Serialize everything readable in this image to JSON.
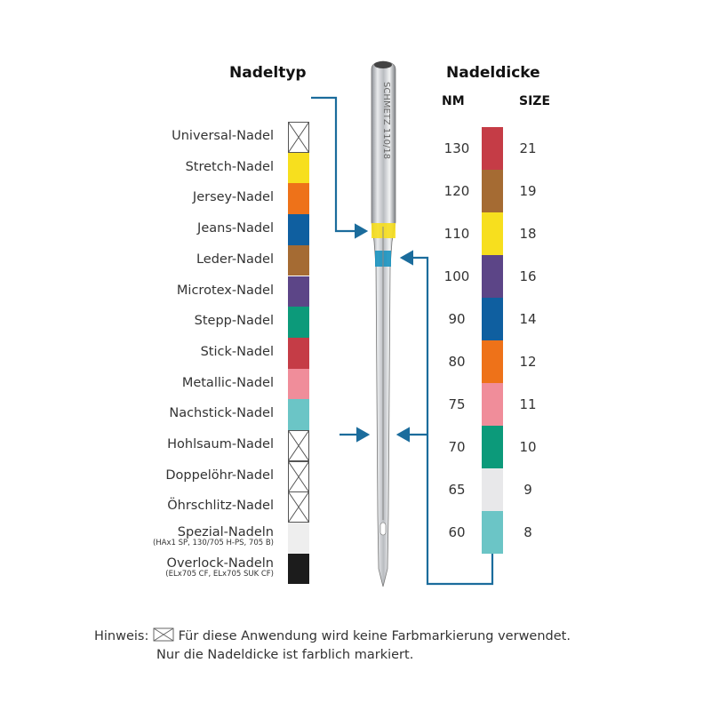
{
  "headers": {
    "needle_type": "Nadeltyp",
    "needle_size": "Nadeldicke",
    "nm": "NM",
    "size": "SIZE"
  },
  "needle_engraving": "SCHMETZ 110/18",
  "needle_types": [
    {
      "label": "Universal-Nadel",
      "color": null
    },
    {
      "label": "Stretch-Nadel",
      "color": "#f7df1e"
    },
    {
      "label": "Jersey-Nadel",
      "color": "#ee7219"
    },
    {
      "label": "Jeans-Nadel",
      "color": "#0f5fa0"
    },
    {
      "label": "Leder-Nadel",
      "color": "#a56b33"
    },
    {
      "label": "Microtex-Nadel",
      "color": "#5c4587"
    },
    {
      "label": "Stepp-Nadel",
      "color": "#0c9a7a"
    },
    {
      "label": "Stick-Nadel",
      "color": "#c53c46"
    },
    {
      "label": "Metallic-Nadel",
      "color": "#f08d9a"
    },
    {
      "label": "Nachstick-Nadel",
      "color": "#6bc5c6"
    },
    {
      "label": "Hohlsaum-Nadel",
      "color": null
    },
    {
      "label": "Doppelöhr-Nadel",
      "color": null
    },
    {
      "label": "Öhrschlitz-Nadel",
      "color": null
    },
    {
      "label": "Spezial-Nadeln",
      "note": "(HAx1 SP, 130/705 H-PS, 705 B)",
      "color": "#eeeeee"
    },
    {
      "label": "Overlock-Nadeln",
      "note": "(ELx705 CF, ELx705 SUK CF)",
      "color": "#1c1c1c"
    }
  ],
  "needle_sizes": [
    {
      "nm": "130",
      "size": "21",
      "color": "#c53c46"
    },
    {
      "nm": "120",
      "size": "19",
      "color": "#a56b33"
    },
    {
      "nm": "110",
      "size": "18",
      "color": "#f7df1e"
    },
    {
      "nm": "100",
      "size": "16",
      "color": "#5c4587"
    },
    {
      "nm": "90",
      "size": "14",
      "color": "#0f5fa0"
    },
    {
      "nm": "80",
      "size": "12",
      "color": "#ee7219"
    },
    {
      "nm": "75",
      "size": "11",
      "color": "#f08d9a"
    },
    {
      "nm": "70",
      "size": "10",
      "color": "#0c9a7a"
    },
    {
      "nm": "65",
      "size": "9",
      "color": "#e8e8ea"
    },
    {
      "nm": "60",
      "size": "8",
      "color": "#6bc5c6"
    }
  ],
  "hint": {
    "prefix": "Hinweis:",
    "line1": "Für diese Anwendung wird keine Farbmarkierung verwendet.",
    "line2": "Nur die Nadeldicke ist farblich markiert."
  },
  "colors": {
    "arrow": "#1b6c9c",
    "needle_type_band": "#f7df1e",
    "needle_size_band": "#1a93c0"
  }
}
